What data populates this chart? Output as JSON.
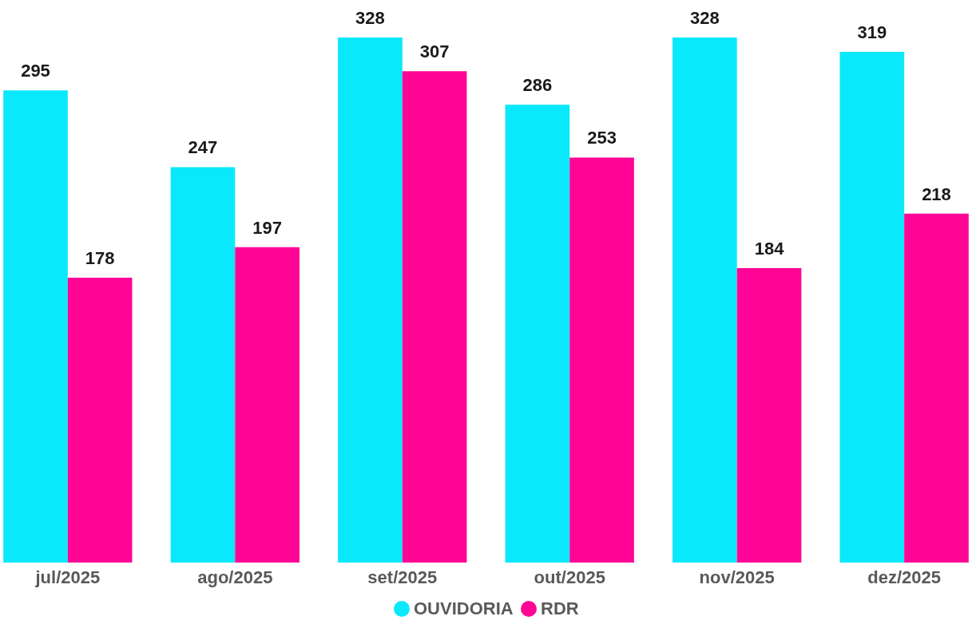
{
  "chart_data": {
    "type": "bar",
    "categories": [
      "jul/2025",
      "ago/2025",
      "set/2025",
      "out/2025",
      "nov/2025",
      "dez/2025"
    ],
    "series": [
      {
        "name": "OUVIDORIA",
        "color": "#0ae8fc",
        "values": [
          295,
          247,
          328,
          286,
          328,
          319
        ]
      },
      {
        "name": "RDR",
        "color": "#ff0596",
        "values": [
          178,
          197,
          307,
          253,
          184,
          218
        ]
      }
    ],
    "data_labels": true,
    "legend": "bottom"
  }
}
